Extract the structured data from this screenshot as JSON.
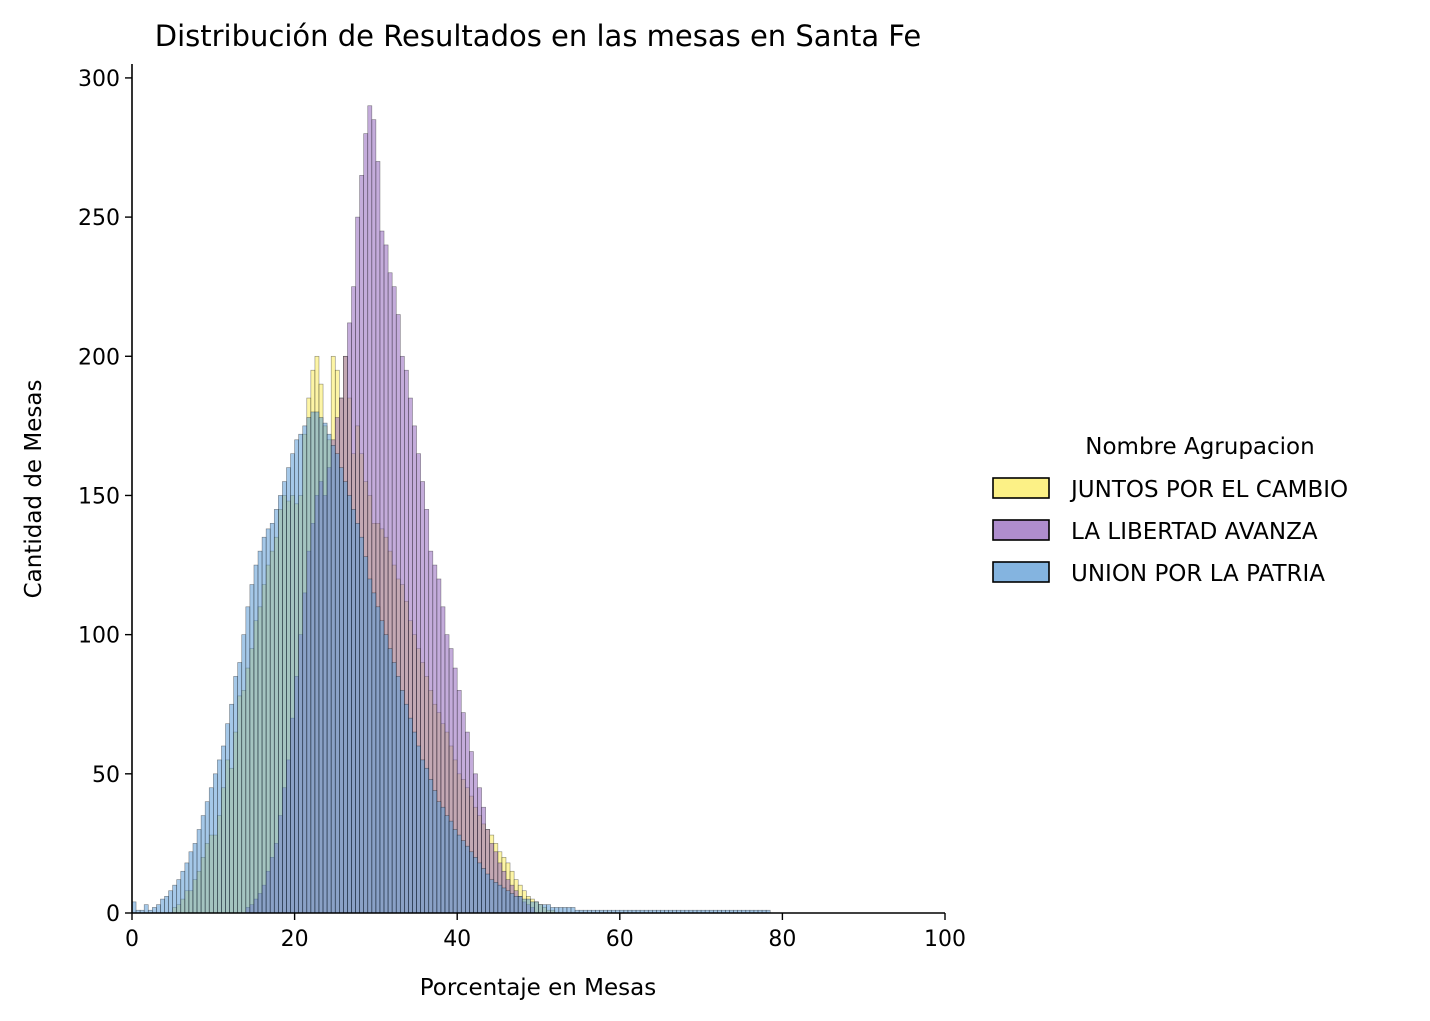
{
  "chart_data": {
    "type": "histogram",
    "title": "Distribución de Resultados en las mesas en Santa Fe",
    "xlabel": "Porcentaje en Mesas",
    "ylabel": "Cantidad de Mesas",
    "xlim": [
      0,
      100
    ],
    "ylim": [
      0,
      305
    ],
    "xticks": [
      0,
      20,
      40,
      60,
      80,
      100
    ],
    "yticks": [
      0,
      50,
      100,
      150,
      200,
      250,
      300
    ],
    "grid": false,
    "legend": {
      "title": "Nombre Agrupacion",
      "placement": "right"
    },
    "bin_width": 0.5,
    "series": [
      {
        "name": "JUNTOS POR EL CAMBIO",
        "color": "#fbec5d",
        "bins_start": 5,
        "counts": [
          2,
          3,
          5,
          8,
          8,
          12,
          15,
          20,
          25,
          28,
          28,
          35,
          45,
          55,
          52,
          65,
          78,
          80,
          88,
          95,
          105,
          110,
          118,
          125,
          130,
          135,
          145,
          150,
          148,
          150,
          147,
          150,
          172,
          185,
          195,
          200,
          190,
          175,
          170,
          200,
          195,
          185,
          200,
          185,
          165,
          175,
          165,
          155,
          150,
          140,
          140,
          138,
          135,
          130,
          125,
          120,
          118,
          112,
          105,
          100,
          95,
          90,
          85,
          80,
          75,
          72,
          68,
          65,
          60,
          55,
          50,
          48,
          45,
          42,
          38,
          35,
          32,
          30,
          28,
          25,
          22,
          20,
          18,
          15,
          12,
          10,
          8,
          6,
          5,
          4,
          3,
          2,
          1,
          1
        ]
      },
      {
        "name": "LA LIBERTAD AVANZA",
        "color": "#9467bd",
        "bins_start": 14,
        "counts": [
          2,
          3,
          5,
          7,
          10,
          15,
          20,
          25,
          35,
          45,
          55,
          70,
          85,
          100,
          115,
          130,
          140,
          150,
          155,
          150,
          160,
          170,
          178,
          185,
          200,
          212,
          225,
          250,
          265,
          280,
          290,
          285,
          270,
          245,
          240,
          230,
          225,
          215,
          200,
          195,
          185,
          175,
          165,
          155,
          145,
          130,
          125,
          120,
          110,
          100,
          95,
          88,
          80,
          72,
          65,
          58,
          50,
          45,
          38,
          30,
          25,
          22,
          18,
          15,
          12,
          10,
          8,
          6,
          4,
          3,
          2
        ]
      },
      {
        "name": "UNION POR LA PATRIA",
        "color": "#5b9bd5",
        "bins_start": 0,
        "counts": [
          4,
          1,
          1,
          3,
          1,
          2,
          3,
          5,
          6,
          8,
          10,
          12,
          15,
          18,
          22,
          25,
          30,
          35,
          40,
          45,
          50,
          55,
          60,
          68,
          75,
          85,
          90,
          100,
          110,
          118,
          125,
          130,
          135,
          138,
          140,
          145,
          150,
          155,
          160,
          165,
          170,
          172,
          175,
          178,
          180,
          180,
          178,
          176,
          172,
          168,
          165,
          160,
          155,
          150,
          145,
          140,
          135,
          128,
          120,
          115,
          110,
          105,
          100,
          95,
          90,
          85,
          80,
          75,
          70,
          65,
          60,
          55,
          52,
          48,
          44,
          40,
          38,
          35,
          33,
          30,
          28,
          26,
          24,
          22,
          20,
          18,
          16,
          14,
          12,
          11,
          10,
          9,
          8,
          7,
          6,
          6,
          5,
          5,
          4,
          4,
          3,
          3,
          3,
          2,
          2,
          2,
          2,
          2,
          2,
          1,
          1,
          1,
          1,
          1,
          1,
          1,
          1,
          1,
          1,
          1,
          1,
          1,
          1,
          1,
          1,
          1,
          1,
          1,
          1,
          1,
          1,
          1,
          1,
          1,
          1,
          1,
          1,
          1,
          1,
          1,
          1,
          1,
          1,
          1,
          1,
          1,
          1,
          1,
          1,
          1,
          1,
          1,
          1,
          1,
          1,
          1,
          1
        ]
      }
    ]
  }
}
